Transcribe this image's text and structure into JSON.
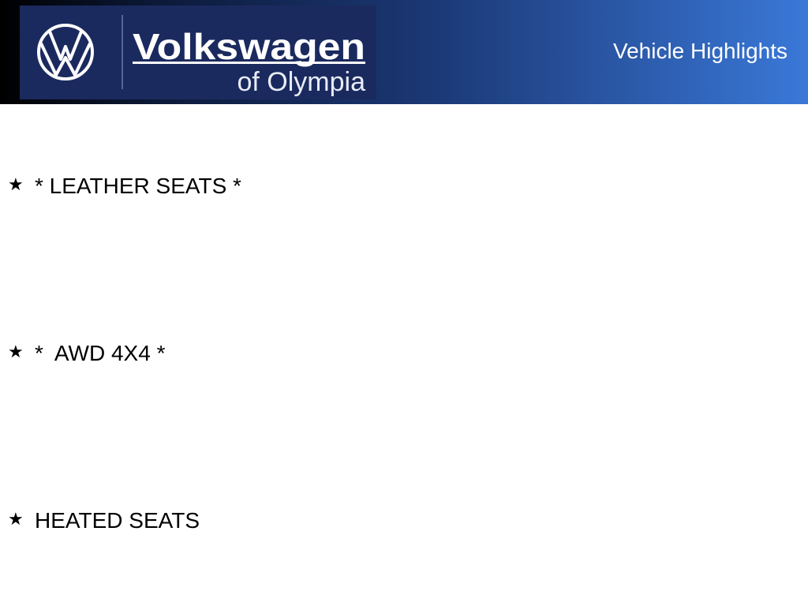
{
  "header": {
    "logo": {
      "brand": "Volkswagen",
      "location": "of Olympia"
    },
    "title": "Vehicle Highlights"
  },
  "highlights": [
    {
      "icon": "star-icon",
      "label": "* LEATHER SEATS *"
    },
    {
      "icon": "star-icon",
      "label": "*  AWD 4X4 *"
    },
    {
      "icon": "star-icon",
      "label": "HEATED SEATS"
    }
  ],
  "colors": {
    "logo_bg": "#1b2a5e",
    "header_end": "#3a78d8"
  }
}
